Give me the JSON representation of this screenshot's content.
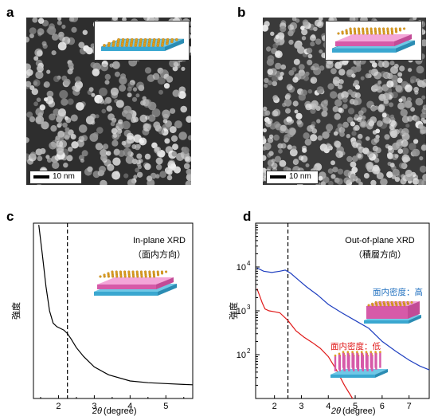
{
  "panels": {
    "a": {
      "label": "a",
      "scalebar": "10 nm"
    },
    "b": {
      "label": "b",
      "scalebar": "10 nm"
    },
    "c": {
      "label": "c"
    },
    "d": {
      "label": "d"
    }
  },
  "chart_data": [
    {
      "type": "line",
      "panel": "c",
      "annotation_title": "In-plane XRD",
      "annotation_subtitle": "（面内方向）",
      "xlabel_symbol": "2θ",
      "xlabel_unit": "(degree)",
      "ylabel": "強度",
      "xlim": [
        1.3,
        5.75
      ],
      "xticks": [
        "2",
        "3",
        "4",
        "5"
      ],
      "xtick_values": [
        2,
        3,
        4,
        5
      ],
      "reference_line_x": 2.25,
      "series": [
        {
          "color": "#000000",
          "x": [
            1.45,
            1.55,
            1.65,
            1.75,
            1.85,
            1.95,
            2.05,
            2.15,
            2.25,
            2.35,
            2.5,
            2.7,
            3.0,
            3.4,
            4.0,
            4.5,
            5.0,
            5.5,
            5.75
          ],
          "y": [
            0.99,
            0.82,
            0.64,
            0.5,
            0.43,
            0.41,
            0.4,
            0.39,
            0.37,
            0.34,
            0.29,
            0.24,
            0.18,
            0.135,
            0.1,
            0.09,
            0.085,
            0.08,
            0.078
          ]
        }
      ]
    },
    {
      "type": "line",
      "panel": "d",
      "annotation_title": "Out-of-plane XRD",
      "annotation_subtitle": "（積層方向）",
      "xlabel_symbol": "2θ",
      "xlabel_unit": "(degree)",
      "ylabel": "強度",
      "xlim": [
        1.3,
        7.75
      ],
      "ylim": [
        10,
        100000
      ],
      "yscale": "log",
      "xticks": [
        "2",
        "3",
        "4",
        "5",
        "6",
        "7"
      ],
      "xtick_values": [
        2,
        3,
        4,
        5,
        6,
        7
      ],
      "yticks": [
        "10",
        "10",
        "10"
      ],
      "ytick_exponents": [
        "2",
        "3",
        "4"
      ],
      "ytick_values": [
        100,
        1000,
        10000
      ],
      "reference_line_x": 2.5,
      "series": [
        {
          "name": "面内密度：高",
          "color": "#1f3fc0",
          "x": [
            1.35,
            1.6,
            1.9,
            2.2,
            2.4,
            2.6,
            2.9,
            3.2,
            3.6,
            4.0,
            4.5,
            5.0,
            5.5,
            6.0,
            6.5,
            7.0,
            7.4,
            7.75
          ],
          "y": [
            9500,
            8000,
            7500,
            8000,
            8500,
            7200,
            5000,
            3500,
            2300,
            1400,
            900,
            600,
            400,
            200,
            120,
            75,
            55,
            45
          ]
        },
        {
          "name": "面内密度：低",
          "color": "#e01818",
          "x": [
            1.35,
            1.45,
            1.55,
            1.65,
            1.8,
            2.0,
            2.2,
            2.5,
            2.8,
            3.1,
            3.4,
            3.7,
            4.0,
            4.3,
            4.6,
            4.9
          ],
          "y": [
            3200,
            2200,
            1500,
            1100,
            1000,
            950,
            900,
            600,
            350,
            250,
            190,
            140,
            90,
            45,
            20,
            10
          ]
        }
      ]
    }
  ]
}
